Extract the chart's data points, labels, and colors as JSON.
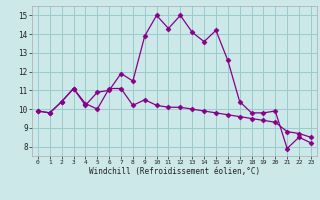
{
  "xlabel": "Windchill (Refroidissement éolien,°C)",
  "background_color": "#cce8e8",
  "line_color": "#880088",
  "grid_color": "#99cccc",
  "xlim": [
    -0.5,
    23.5
  ],
  "ylim": [
    7.5,
    15.5
  ],
  "xtick_labels": [
    "0",
    "1",
    "2",
    "3",
    "4",
    "5",
    "6",
    "7",
    "8",
    "9",
    "10",
    "11",
    "12",
    "13",
    "14",
    "15",
    "16",
    "17",
    "18",
    "19",
    "20",
    "21",
    "22",
    "23"
  ],
  "ytick_vals": [
    8,
    9,
    10,
    11,
    12,
    13,
    14,
    15
  ],
  "line1_x": [
    0,
    1,
    2,
    3,
    4,
    5,
    6,
    7,
    8,
    9,
    10,
    11,
    12,
    13,
    14,
    15,
    16,
    17,
    18,
    19,
    20,
    21,
    22,
    23
  ],
  "line1_y": [
    9.9,
    9.8,
    10.4,
    11.1,
    10.2,
    10.9,
    11.0,
    11.9,
    11.5,
    13.9,
    15.0,
    14.3,
    15.0,
    14.1,
    13.6,
    14.2,
    12.6,
    10.4,
    9.8,
    9.8,
    9.9,
    7.9,
    8.5,
    8.2
  ],
  "line2_x": [
    0,
    1,
    2,
    3,
    4,
    5,
    6,
    7,
    8,
    9,
    10,
    11,
    12,
    13,
    14,
    15,
    16,
    17,
    18,
    19,
    20,
    21,
    22,
    23
  ],
  "line2_y": [
    9.9,
    9.8,
    10.4,
    11.1,
    10.3,
    10.0,
    11.1,
    11.1,
    10.2,
    10.5,
    10.2,
    10.1,
    10.1,
    10.0,
    9.9,
    9.8,
    9.7,
    9.6,
    9.5,
    9.4,
    9.3,
    8.8,
    8.7,
    8.5
  ]
}
